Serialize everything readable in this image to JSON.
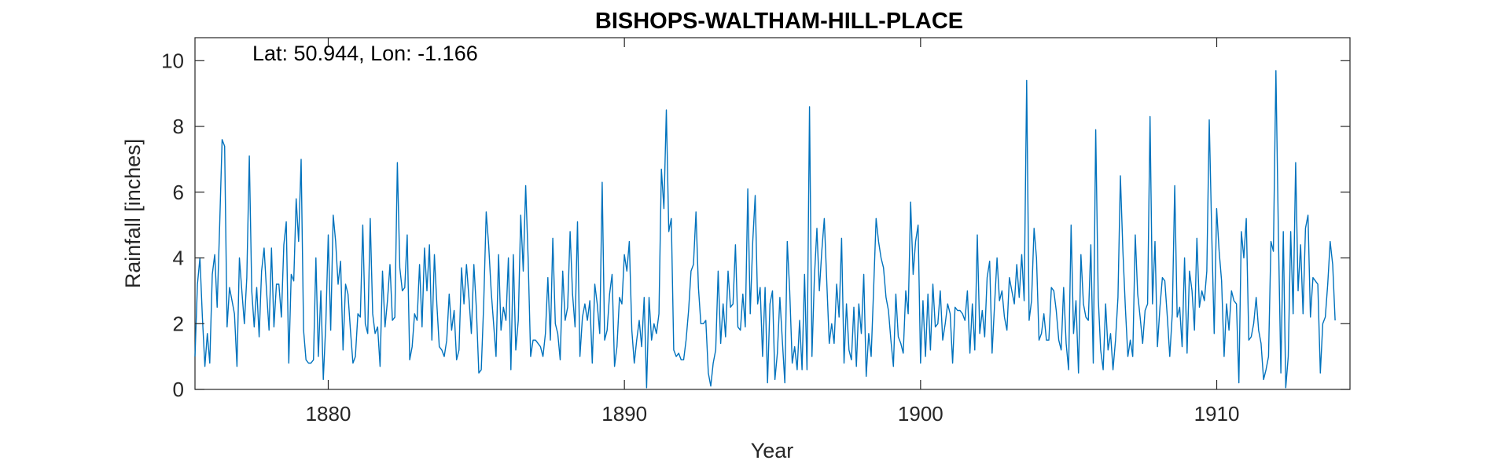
{
  "chart_data": {
    "type": "line",
    "title": "BISHOPS-WALTHAM-HILL-PLACE",
    "annotation": "Lat: 50.944, Lon: -1.166",
    "xlabel": "Year",
    "ylabel": "Rainfall [inches]",
    "xlim": [
      1875.5,
      1914.5
    ],
    "ylim": [
      0,
      10.7
    ],
    "xticks": [
      1880,
      1890,
      1900,
      1910
    ],
    "yticks": [
      0,
      2,
      4,
      6,
      8,
      10
    ],
    "grid": false,
    "series_color": "#0072BD",
    "series": [
      {
        "x_start": 1875.5,
        "x_step": 0.08333,
        "values": [
          1.0,
          3.2,
          4.0,
          2.2,
          0.7,
          1.7,
          0.8,
          3.5,
          4.1,
          2.5,
          5.0,
          7.6,
          7.4,
          1.9,
          3.1,
          2.7,
          2.3,
          0.7,
          4.0,
          3.0,
          2.0,
          3.4,
          7.1,
          3.0,
          1.9,
          3.1,
          1.6,
          3.6,
          4.3,
          3.0,
          1.8,
          4.3,
          1.9,
          3.2,
          3.2,
          2.2,
          4.4,
          5.1,
          0.8,
          3.5,
          3.3,
          5.8,
          4.5,
          7.0,
          1.8,
          0.9,
          0.8,
          0.8,
          0.9,
          4.0,
          1.0,
          3.0,
          0.3,
          2.0,
          4.7,
          1.8,
          5.3,
          4.5,
          3.2,
          3.9,
          1.2,
          3.2,
          2.9,
          1.8,
          0.8,
          1.0,
          2.3,
          2.2,
          5.0,
          2.0,
          1.7,
          5.2,
          2.3,
          1.7,
          1.9,
          0.7,
          3.6,
          1.9,
          2.7,
          3.8,
          2.1,
          2.2,
          6.9,
          3.7,
          3.0,
          3.1,
          4.7,
          0.9,
          1.3,
          2.3,
          2.1,
          3.8,
          1.9,
          4.3,
          3.0,
          4.4,
          1.5,
          4.1,
          2.6,
          1.3,
          1.2,
          1.0,
          1.5,
          2.9,
          1.8,
          2.4,
          0.9,
          1.2,
          3.7,
          2.6,
          3.8,
          2.8,
          1.7,
          3.8,
          2.5,
          0.5,
          0.6,
          2.6,
          5.4,
          4.4,
          3.0,
          2.0,
          1.0,
          4.1,
          1.8,
          2.5,
          2.1,
          4.0,
          0.6,
          4.1,
          1.2,
          2.1,
          5.3,
          3.6,
          6.2,
          4.0,
          1.0,
          1.5,
          1.5,
          1.4,
          1.3,
          1.0,
          1.7,
          3.4,
          1.5,
          4.6,
          2.0,
          1.7,
          0.9,
          3.6,
          2.1,
          2.5,
          4.8,
          2.9,
          1.9,
          5.1,
          1.0,
          2.2,
          2.6,
          2.1,
          2.7,
          0.8,
          3.2,
          2.6,
          1.7,
          6.3,
          1.5,
          1.8,
          2.9,
          3.5,
          0.7,
          1.3,
          2.8,
          2.6,
          4.1,
          3.6,
          4.5,
          1.8,
          0.8,
          1.5,
          2.1,
          1.3,
          2.8,
          0.05,
          2.8,
          1.5,
          2.0,
          1.7,
          2.3,
          6.7,
          5.5,
          8.5,
          4.8,
          5.2,
          1.2,
          1.0,
          1.1,
          0.9,
          0.9,
          1.5,
          2.4,
          3.6,
          3.8,
          5.4,
          3.1,
          2.0,
          2.0,
          2.1,
          0.5,
          0.1,
          0.8,
          1.2,
          3.6,
          1.4,
          2.6,
          1.6,
          3.6,
          2.5,
          2.6,
          4.4,
          1.9,
          1.8,
          2.9,
          1.9,
          6.1,
          2.3,
          4.5,
          5.9,
          2.6,
          3.1,
          1.0,
          3.1,
          0.2,
          2.6,
          3.0,
          0.3,
          1.1,
          2.8,
          1.5,
          0.2,
          4.5,
          3.0,
          0.8,
          1.3,
          0.6,
          2.1,
          0.6,
          3.5,
          0.6,
          8.6,
          1.0,
          3.4,
          4.9,
          3.0,
          4.2,
          5.2,
          3.3,
          1.4,
          2.0,
          1.4,
          3.2,
          2.2,
          4.6,
          0.8,
          2.6,
          1.2,
          0.9,
          2.5,
          0.7,
          2.6,
          1.7,
          3.5,
          0.4,
          1.7,
          1.0,
          3.1,
          5.2,
          4.5,
          4.0,
          3.7,
          2.8,
          2.4,
          1.5,
          0.7,
          2.9,
          1.6,
          1.4,
          1.1,
          3.0,
          2.3,
          5.7,
          3.5,
          4.5,
          5.0,
          0.8,
          2.7,
          1.0,
          2.9,
          1.2,
          3.2,
          1.9,
          2.0,
          3.0,
          1.5,
          2.0,
          2.6,
          2.3,
          0.8,
          2.5,
          2.4,
          2.4,
          2.3,
          2.1,
          3.0,
          1.1,
          2.6,
          1.2,
          4.7,
          1.7,
          2.4,
          1.6,
          3.4,
          3.9,
          1.1,
          2.6,
          4.0,
          2.7,
          3.0,
          2.2,
          1.8,
          3.4,
          3.0,
          2.6,
          3.8,
          2.8,
          4.1,
          2.7,
          9.4,
          2.1,
          2.7,
          4.9,
          4.0,
          1.5,
          1.7,
          2.3,
          1.5,
          1.5,
          3.1,
          3.0,
          2.4,
          1.5,
          1.2,
          3.1,
          1.4,
          0.6,
          5.0,
          1.7,
          2.7,
          0.5,
          4.1,
          2.6,
          2.2,
          2.1,
          4.4,
          0.8,
          7.9,
          2.8,
          1.2,
          0.6,
          2.6,
          1.2,
          1.7,
          0.6,
          1.5,
          2.8,
          6.5,
          4.2,
          2.5,
          1.0,
          1.5,
          1.0,
          4.7,
          2.9,
          2.2,
          1.4,
          2.4,
          2.6,
          8.3,
          2.6,
          4.5,
          1.3,
          2.5,
          3.4,
          3.3,
          2.2,
          1.0,
          2.3,
          6.2,
          2.2,
          2.5,
          1.3,
          4.0,
          1.1,
          3.6,
          3.0,
          1.8,
          4.6,
          2.5,
          3.0,
          2.7,
          3.6,
          8.2,
          4.7,
          1.7,
          5.5,
          4.2,
          3.3,
          1.0,
          2.6,
          1.8,
          3.0,
          2.7,
          2.6,
          0.2,
          4.8,
          4.0,
          5.2,
          1.5,
          1.6,
          2.0,
          2.8,
          1.8,
          1.4,
          0.3,
          0.6,
          1.0,
          4.5,
          4.2,
          9.7,
          4.8,
          0.5,
          4.8,
          0.05,
          1.0,
          4.8,
          2.3,
          6.9,
          3.0,
          4.4,
          2.3,
          4.9,
          5.3,
          2.2,
          3.4,
          3.3,
          3.2,
          0.5,
          2.0,
          2.2,
          3.2,
          4.5,
          3.8,
          2.1
        ]
      }
    ]
  }
}
